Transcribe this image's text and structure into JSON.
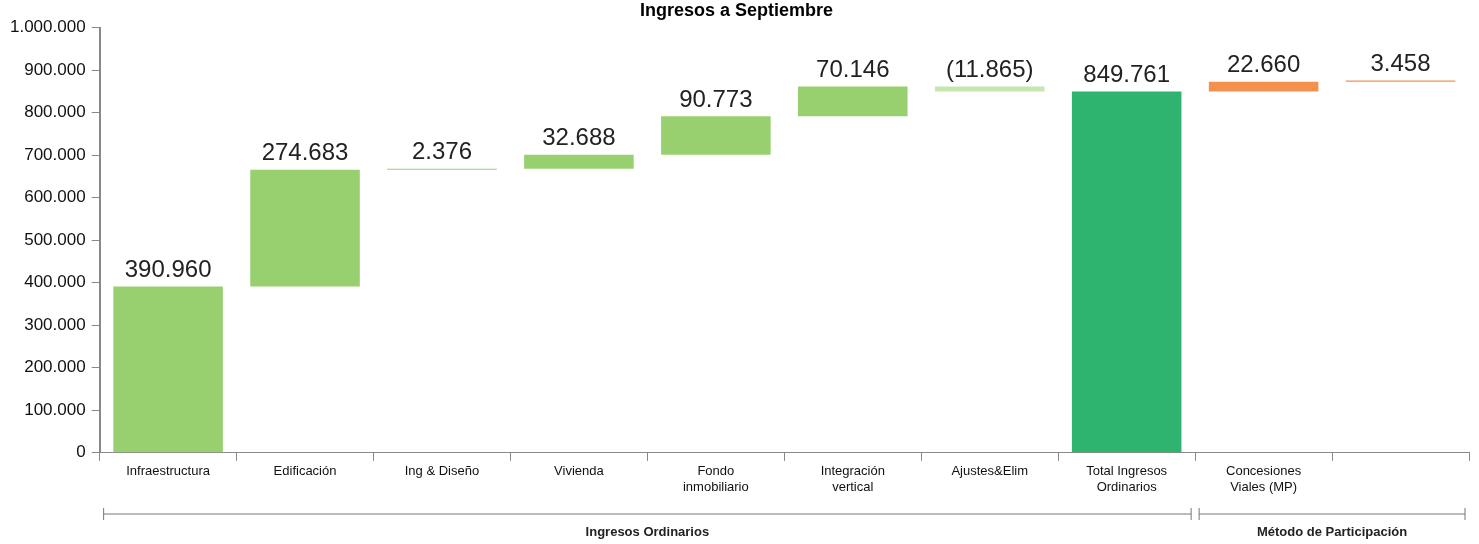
{
  "chart_data": {
    "type": "bar",
    "title": "Ingresos a Septiembre",
    "categories": [
      "Infraestructura",
      "Edificación",
      "Ing & Diseño",
      "Vivienda",
      "Fondo inmobiliario",
      "Integración vertical",
      "Ajustes&Elim",
      "Total Ingresos Ordinarios",
      "Concesiones Viales (MP)",
      null
    ],
    "values": [
      390960,
      274683,
      2376,
      32688,
      90773,
      70146,
      -11865,
      849761,
      22660,
      3458
    ],
    "base": [
      0,
      390960,
      665643,
      668019,
      700707,
      791480,
      861626,
      0,
      849761,
      872421
    ],
    "colors": [
      "#98cf6f",
      "#98cf6f",
      "#98cf6f",
      "#98cf6f",
      "#98cf6f",
      "#98cf6f",
      "#c6e6b0",
      "#2eb46e",
      "#f4914f",
      "#f4914f"
    ],
    "value_labels": [
      "390.960",
      "274.683",
      "2.376",
      "32.688",
      "90.773",
      "70.146",
      "(11.865)",
      "849.761",
      "22.660",
      "3.458"
    ],
    "ylim": [
      0,
      1000000
    ],
    "yticks": [
      {
        "value": 0,
        "label": "0"
      },
      {
        "value": 100000,
        "label": "100.000"
      },
      {
        "value": 200000,
        "label": "200.000"
      },
      {
        "value": 300000,
        "label": "300.000"
      },
      {
        "value": 400000,
        "label": "400.000"
      },
      {
        "value": 500000,
        "label": "500.000"
      },
      {
        "value": 600000,
        "label": "600.000"
      },
      {
        "value": 700000,
        "label": "700.000"
      },
      {
        "value": 800000,
        "label": "800.000"
      },
      {
        "value": 900000,
        "label": "900.000"
      },
      {
        "value": 1000000,
        "label": "1.000.000"
      }
    ],
    "annotations": [
      "Ingresos Ordinarios",
      "Método de Participación"
    ]
  }
}
